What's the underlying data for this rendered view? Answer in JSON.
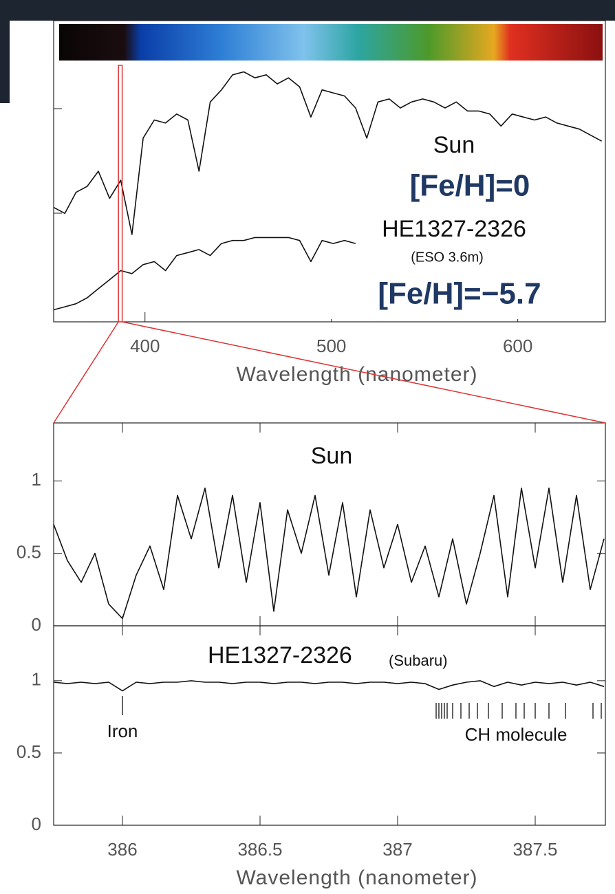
{
  "chart_data": [
    {
      "type": "line",
      "xlim": [
        351,
        647
      ],
      "ylim": [
        0,
        1
      ],
      "xticks": [
        400,
        500,
        600
      ],
      "xlabel": "Wavelength (nanometer)",
      "x": [
        351,
        357,
        363,
        369,
        375,
        381,
        387,
        393,
        399,
        405,
        411,
        417,
        423,
        429,
        435,
        441,
        447,
        453,
        459,
        465,
        471,
        477,
        483,
        489,
        495,
        501,
        507,
        513,
        519,
        525,
        531,
        537,
        543,
        549,
        555,
        561,
        567,
        573,
        579,
        585,
        591,
        597,
        603,
        609,
        615,
        621,
        627,
        633,
        639,
        645
      ],
      "series": [
        {
          "name": "Sun",
          "color": "#111111",
          "values": [
            0.38,
            0.36,
            0.43,
            0.45,
            0.5,
            0.41,
            0.47,
            0.29,
            0.61,
            0.67,
            0.66,
            0.69,
            0.67,
            0.5,
            0.73,
            0.77,
            0.82,
            0.83,
            0.81,
            0.82,
            0.79,
            0.81,
            0.78,
            0.68,
            0.77,
            0.76,
            0.75,
            0.71,
            0.61,
            0.73,
            0.74,
            0.71,
            0.73,
            0.74,
            0.73,
            0.71,
            0.73,
            0.7,
            0.7,
            0.69,
            0.65,
            0.69,
            0.68,
            0.67,
            0.68,
            0.66,
            0.65,
            0.64,
            0.62,
            0.6
          ]
        },
        {
          "name": "HE1327-2326",
          "color": "#111111",
          "values": [
            0.04,
            0.05,
            0.06,
            0.08,
            0.11,
            0.14,
            0.17,
            0.16,
            0.19,
            0.2,
            0.17,
            0.22,
            0.23,
            0.24,
            0.22,
            0.26,
            0.27,
            0.27,
            0.28,
            0.28,
            0.28,
            0.28,
            0.27,
            0.2,
            0.27,
            0.26,
            0.27,
            0.26,
            null,
            null,
            null,
            null,
            null,
            null,
            null,
            null,
            null,
            null,
            null,
            null,
            null,
            null,
            null,
            null,
            null,
            null,
            null,
            null,
            null,
            null
          ]
        }
      ],
      "annotations": [
        "[Fe/H]=0",
        "(ESO 3.6m)",
        "[Fe/H]=−5.7"
      ]
    },
    {
      "type": "line",
      "xlim": [
        385.75,
        387.755
      ],
      "ylim": [
        0,
        1.4
      ],
      "yticks": [
        0,
        0.5,
        1
      ],
      "x": [
        385.75,
        385.8,
        385.85,
        385.9,
        385.95,
        386,
        386.05,
        386.1,
        386.15,
        386.2,
        386.25,
        386.3,
        386.35,
        386.4,
        386.45,
        386.5,
        386.55,
        386.6,
        386.65,
        386.7,
        386.75,
        386.8,
        386.85,
        386.9,
        386.95,
        387,
        387.05,
        387.1,
        387.15,
        387.2,
        387.25,
        387.3,
        387.35,
        387.4,
        387.45,
        387.5,
        387.55,
        387.6,
        387.65,
        387.7,
        387.75
      ],
      "series": [
        {
          "name": "Sun",
          "color": "#111111",
          "values": [
            0.7,
            0.45,
            0.3,
            0.5,
            0.15,
            0.05,
            0.35,
            0.55,
            0.25,
            0.9,
            0.6,
            0.95,
            0.4,
            0.9,
            0.3,
            0.85,
            0.1,
            0.8,
            0.5,
            0.9,
            0.35,
            0.85,
            0.2,
            0.8,
            0.4,
            0.7,
            0.3,
            0.55,
            0.2,
            0.6,
            0.15,
            0.5,
            0.9,
            0.2,
            0.95,
            0.4,
            0.95,
            0.3,
            0.9,
            0.25,
            0.6
          ]
        }
      ]
    },
    {
      "type": "line",
      "xlim": [
        385.75,
        387.755
      ],
      "ylim": [
        0,
        1.38
      ],
      "xticks": [
        386,
        386.5,
        387,
        387.5
      ],
      "yticks": [
        0,
        0.5,
        1
      ],
      "xlabel": "Wavelength (nanometer)",
      "x": [
        385.75,
        385.8,
        385.85,
        385.9,
        385.95,
        386,
        386.05,
        386.1,
        386.15,
        386.2,
        386.25,
        386.3,
        386.35,
        386.4,
        386.45,
        386.5,
        386.55,
        386.6,
        386.65,
        386.7,
        386.75,
        386.8,
        386.85,
        386.9,
        386.95,
        387,
        387.05,
        387.1,
        387.15,
        387.2,
        387.25,
        387.3,
        387.35,
        387.4,
        387.45,
        387.5,
        387.55,
        387.6,
        387.65,
        387.7,
        387.75
      ],
      "series": [
        {
          "name": "HE1327-2326",
          "color": "#111111",
          "values": [
            0.99,
            0.98,
            0.99,
            0.98,
            0.99,
            0.93,
            0.99,
            0.98,
            0.99,
            0.99,
            1.0,
            0.99,
            0.99,
            0.98,
            0.99,
            0.99,
            0.98,
            0.99,
            0.99,
            0.98,
            0.99,
            0.99,
            0.98,
            0.99,
            0.99,
            0.98,
            0.99,
            0.98,
            0.94,
            0.97,
            0.99,
            1.0,
            0.96,
            0.99,
            0.97,
            0.99,
            0.98,
            0.99,
            0.97,
            0.99,
            0.96
          ]
        }
      ],
      "annotations": [
        "(Subaru)"
      ],
      "line_marks": [
        {
          "label": "Iron",
          "x": [
            386
          ]
        },
        {
          "label": "CH molecule",
          "x": [
            387.14,
            387.15,
            387.16,
            387.17,
            387.18,
            387.2,
            387.23,
            387.26,
            387.29,
            387.33,
            387.38,
            387.43,
            387.46,
            387.5,
            387.55,
            387.61,
            387.71,
            387.74
          ]
        }
      ]
    }
  ]
}
